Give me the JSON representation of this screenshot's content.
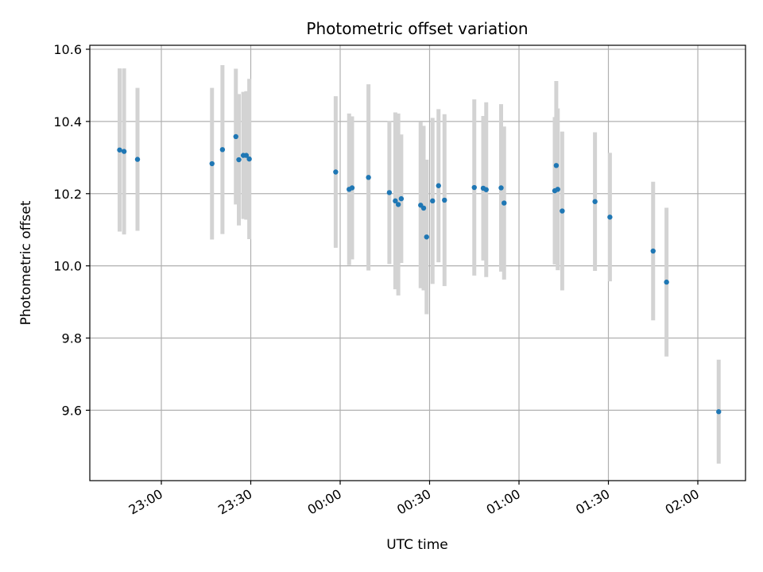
{
  "chart_data": {
    "type": "scatter",
    "title": "Photometric offset variation",
    "xlabel": "UTC time",
    "ylabel": "Photometric offset",
    "x_tick_labels": [
      "23:00",
      "23:30",
      "00:00",
      "00:30",
      "01:00",
      "01:30",
      "02:00"
    ],
    "y_tick_labels": [
      "9.6",
      "9.8",
      "10.0",
      "10.2",
      "10.4",
      "10.6"
    ],
    "y_ticks": [
      9.6,
      9.8,
      10.0,
      10.2,
      10.4,
      10.6
    ],
    "ylim": [
      9.405,
      10.611
    ],
    "xlim": [
      "22:36",
      "02:16"
    ],
    "grid": true,
    "marker_color": "#1f77b4",
    "errorbar_color": "#d3d3d3",
    "points": [
      {
        "x": "22:46:00",
        "y": 10.321,
        "err": 0.226
      },
      {
        "x": "22:47:30",
        "y": 10.317,
        "err": 0.23
      },
      {
        "x": "22:52:00",
        "y": 10.295,
        "err": 0.198
      },
      {
        "x": "23:17:00",
        "y": 10.283,
        "err": 0.21
      },
      {
        "x": "23:20:30",
        "y": 10.322,
        "err": 0.234
      },
      {
        "x": "23:25:00",
        "y": 10.358,
        "err": 0.188
      },
      {
        "x": "23:26:00",
        "y": 10.294,
        "err": 0.182
      },
      {
        "x": "23:27:30",
        "y": 10.306,
        "err": 0.176
      },
      {
        "x": "23:28:30",
        "y": 10.306,
        "err": 0.178
      },
      {
        "x": "23:29:30",
        "y": 10.296,
        "err": 0.222
      },
      {
        "x": "23:58:30",
        "y": 10.26,
        "err": 0.21
      },
      {
        "x": "00:03:00",
        "y": 10.212,
        "err": 0.21
      },
      {
        "x": "00:04:00",
        "y": 10.216,
        "err": 0.198
      },
      {
        "x": "00:09:30",
        "y": 10.245,
        "err": 0.258
      },
      {
        "x": "00:16:30",
        "y": 10.203,
        "err": 0.198
      },
      {
        "x": "00:18:30",
        "y": 10.18,
        "err": 0.245
      },
      {
        "x": "00:19:30",
        "y": 10.17,
        "err": 0.252
      },
      {
        "x": "00:20:30",
        "y": 10.186,
        "err": 0.178
      },
      {
        "x": "00:27:00",
        "y": 10.168,
        "err": 0.23
      },
      {
        "x": "00:28:00",
        "y": 10.16,
        "err": 0.228
      },
      {
        "x": "00:29:00",
        "y": 10.08,
        "err": 0.214
      },
      {
        "x": "00:31:00",
        "y": 10.18,
        "err": 0.23
      },
      {
        "x": "00:33:00",
        "y": 10.222,
        "err": 0.212
      },
      {
        "x": "00:35:00",
        "y": 10.182,
        "err": 0.238
      },
      {
        "x": "00:45:00",
        "y": 10.217,
        "err": 0.244
      },
      {
        "x": "00:48:00",
        "y": 10.215,
        "err": 0.2
      },
      {
        "x": "00:49:00",
        "y": 10.211,
        "err": 0.242
      },
      {
        "x": "00:54:00",
        "y": 10.216,
        "err": 0.232
      },
      {
        "x": "00:55:00",
        "y": 10.174,
        "err": 0.212
      },
      {
        "x": "01:12:00",
        "y": 10.208,
        "err": 0.204
      },
      {
        "x": "01:12:30",
        "y": 10.278,
        "err": 0.234
      },
      {
        "x": "01:13:00",
        "y": 10.212,
        "err": 0.224
      },
      {
        "x": "01:14:30",
        "y": 10.152,
        "err": 0.22
      },
      {
        "x": "01:25:30",
        "y": 10.178,
        "err": 0.192
      },
      {
        "x": "01:30:30",
        "y": 10.135,
        "err": 0.178
      },
      {
        "x": "01:45:00",
        "y": 10.041,
        "err": 0.192
      },
      {
        "x": "01:49:30",
        "y": 9.955,
        "err": 0.206
      },
      {
        "x": "02:07:00",
        "y": 9.596,
        "err": 0.144
      }
    ]
  }
}
